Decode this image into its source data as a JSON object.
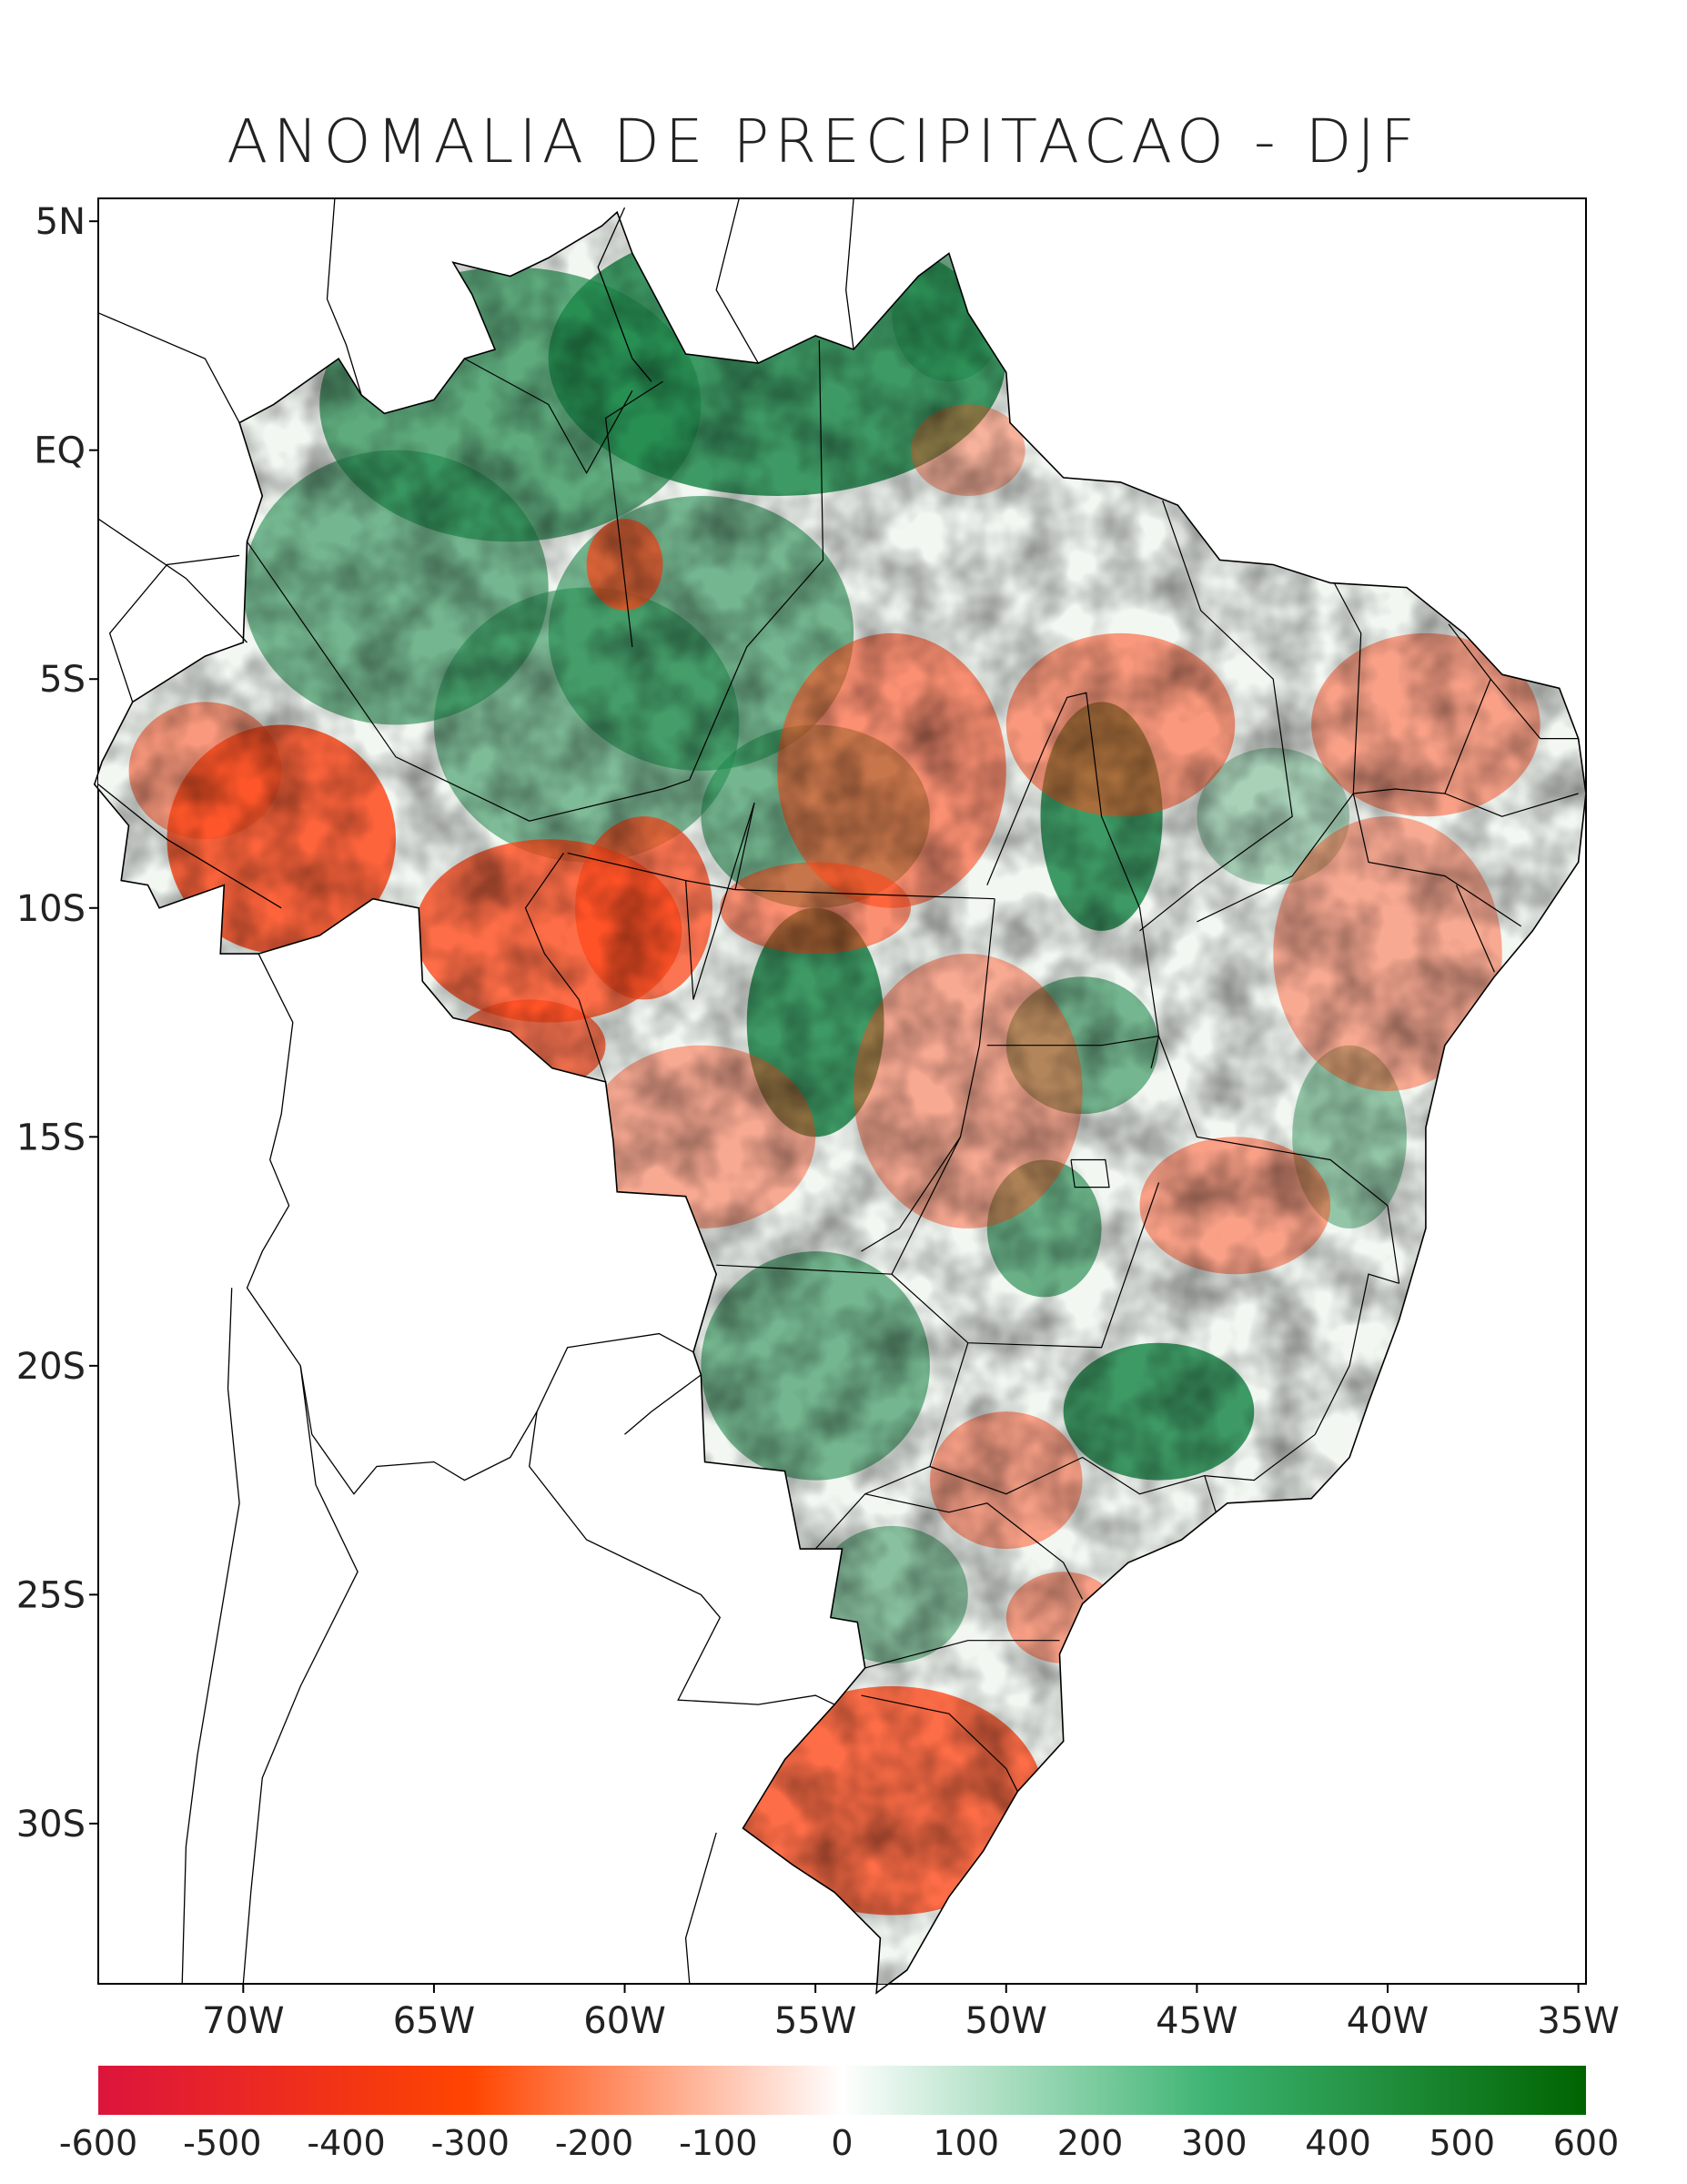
{
  "title": "ANOMALIA DE PRECIPITACAO - DJF",
  "y_axis": {
    "ticks": [
      {
        "label": "5N",
        "lat": 5
      },
      {
        "label": "EQ",
        "lat": 0
      },
      {
        "label": "5S",
        "lat": -5
      },
      {
        "label": "10S",
        "lat": -10
      },
      {
        "label": "15S",
        "lat": -15
      },
      {
        "label": "20S",
        "lat": -20
      },
      {
        "label": "25S",
        "lat": -25
      },
      {
        "label": "30S",
        "lat": -30
      }
    ],
    "range": [
      -33.5,
      5.5
    ]
  },
  "x_axis": {
    "ticks": [
      {
        "label": "70W",
        "lon": -70
      },
      {
        "label": "65W",
        "lon": -65
      },
      {
        "label": "60W",
        "lon": -60
      },
      {
        "label": "55W",
        "lon": -55
      },
      {
        "label": "50W",
        "lon": -50
      },
      {
        "label": "45W",
        "lon": -45
      },
      {
        "label": "40W",
        "lon": -40
      },
      {
        "label": "35W",
        "lon": -35
      }
    ],
    "range": [
      -73.8,
      -34.8
    ]
  },
  "colorbar": {
    "labels": [
      "-600",
      "-500",
      "-400",
      "-300",
      "-200",
      "-100",
      "0",
      "100",
      "200",
      "300",
      "400",
      "500",
      "600"
    ],
    "range": [
      -600,
      600
    ],
    "colors": [
      "#dc143c",
      "#ff4500",
      "#ffffff",
      "#2e8b57",
      "#006400"
    ]
  },
  "map": {
    "land_outline_color": "#000000",
    "positive_color": "#1f8a4c",
    "negative_color": "#ff4a1c"
  }
}
